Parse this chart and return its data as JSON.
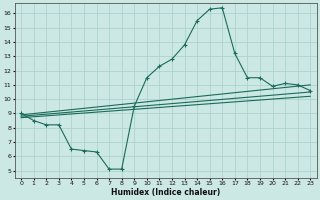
{
  "title": "",
  "xlabel": "Humidex (Indice chaleur)",
  "ylabel": "",
  "xlim": [
    -0.5,
    23.5
  ],
  "ylim": [
    4.5,
    16.7
  ],
  "xticks": [
    0,
    1,
    2,
    3,
    4,
    5,
    6,
    7,
    8,
    9,
    10,
    11,
    12,
    13,
    14,
    15,
    16,
    17,
    18,
    19,
    20,
    21,
    22,
    23
  ],
  "yticks": [
    5,
    6,
    7,
    8,
    9,
    10,
    11,
    12,
    13,
    14,
    15,
    16
  ],
  "color": "#1a6b5a",
  "bg_color": "#cce8e4",
  "grid_color": "#aacfcb",
  "main_curve_x": [
    0,
    1,
    2,
    3,
    4,
    5,
    6,
    7,
    8,
    9,
    10,
    11,
    12,
    13,
    14,
    15,
    16,
    17,
    18,
    19,
    20,
    21,
    22,
    23
  ],
  "main_curve_y": [
    9.0,
    8.5,
    8.2,
    8.2,
    6.5,
    6.4,
    6.3,
    5.1,
    5.1,
    9.5,
    11.5,
    12.3,
    12.8,
    13.8,
    15.5,
    16.3,
    16.4,
    13.2,
    11.5,
    11.5,
    10.9,
    11.1,
    11.0,
    10.6
  ],
  "line2_x": [
    0,
    23
  ],
  "line2_y": [
    8.9,
    11.0
  ],
  "line3_x": [
    0,
    23
  ],
  "line3_y": [
    8.8,
    10.5
  ],
  "line4_x": [
    0,
    23
  ],
  "line4_y": [
    8.7,
    10.2
  ],
  "figwidth": 3.2,
  "figheight": 2.0,
  "dpi": 100
}
